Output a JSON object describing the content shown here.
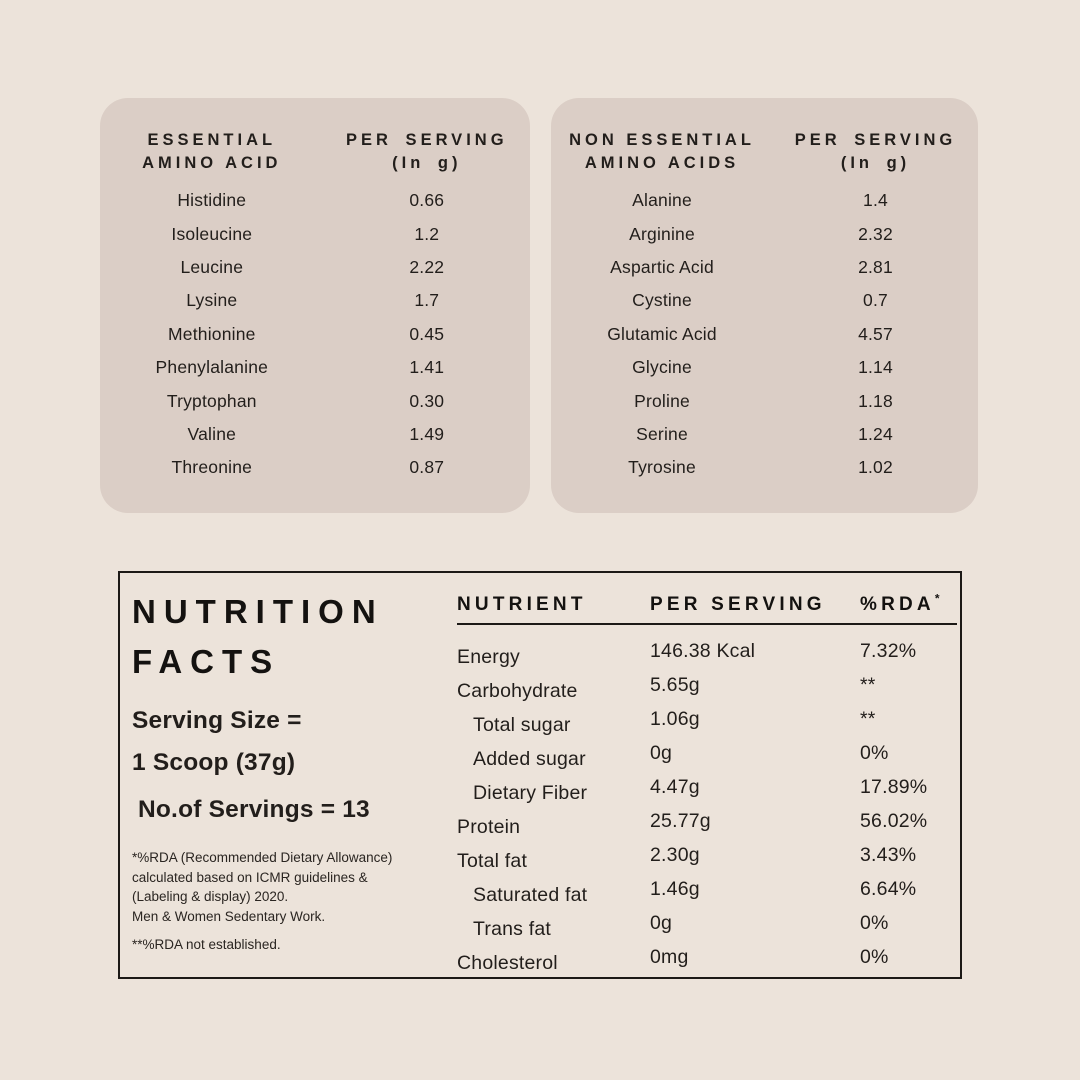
{
  "page": {
    "background_color": "#ece3da",
    "card_color": "#dbcec6",
    "text_color": "#221e1b",
    "border_color": "#1c1916"
  },
  "essential": {
    "header_col1": "ESSENTIAL\nAMINO ACID",
    "header_col2": "PER SERVING\n(In g)",
    "rows": [
      {
        "name": "Histidine",
        "value": "0.66"
      },
      {
        "name": "Isoleucine",
        "value": "1.2"
      },
      {
        "name": "Leucine",
        "value": "2.22"
      },
      {
        "name": "Lysine",
        "value": "1.7"
      },
      {
        "name": "Methionine",
        "value": "0.45"
      },
      {
        "name": "Phenylalanine",
        "value": "1.41"
      },
      {
        "name": "Tryptophan",
        "value": "0.30"
      },
      {
        "name": "Valine",
        "value": "1.49"
      },
      {
        "name": "Threonine",
        "value": "0.87"
      }
    ]
  },
  "non_essential": {
    "header_col1": "NON ESSENTIAL\nAMINO ACIDS",
    "header_col2": "PER SERVING\n(In g)",
    "rows": [
      {
        "name": "Alanine",
        "value": "1.4"
      },
      {
        "name": "Arginine",
        "value": "2.32"
      },
      {
        "name": "Aspartic Acid",
        "value": "2.81"
      },
      {
        "name": "Cystine",
        "value": "0.7"
      },
      {
        "name": "Glutamic Acid",
        "value": "4.57"
      },
      {
        "name": "Glycine",
        "value": "1.14"
      },
      {
        "name": "Proline",
        "value": "1.18"
      },
      {
        "name": "Serine",
        "value": "1.24"
      },
      {
        "name": "Tyrosine",
        "value": "1.02"
      }
    ]
  },
  "nutrition": {
    "title_line1": "NUTRITION",
    "title_line2": "FACTS",
    "serving_line1": "Serving Size =",
    "serving_line2": "1 Scoop (37g)",
    "servings_count": "No.of Servings = 13",
    "footnote1_lines": [
      "*%RDA (Recommended Dietary Allowance)",
      "calculated based on ICMR guidelines &",
      "(Labeling & display) 2020.",
      "Men & Women Sedentary Work."
    ],
    "footnote2": "**%RDA not established.",
    "table": {
      "headers": {
        "nutrient": "NUTRIENT",
        "per_serving": "PER SERVING",
        "rda": "%RDA",
        "rda_asterisk": "*"
      },
      "rows": [
        {
          "nutrient": "Energy",
          "per_serving": "146.38 Kcal",
          "rda": "7.32%",
          "indent": false
        },
        {
          "nutrient": "Carbohydrate",
          "per_serving": "5.65g",
          "rda": "**",
          "indent": false
        },
        {
          "nutrient": "Total sugar",
          "per_serving": "1.06g",
          "rda": "**",
          "indent": true
        },
        {
          "nutrient": "Added sugar",
          "per_serving": "0g",
          "rda": "0%",
          "indent": true
        },
        {
          "nutrient": "Dietary Fiber",
          "per_serving": "4.47g",
          "rda": "17.89%",
          "indent": true
        },
        {
          "nutrient": "Protein",
          "per_serving": "25.77g",
          "rda": "56.02%",
          "indent": false
        },
        {
          "nutrient": "Total fat",
          "per_serving": "2.30g",
          "rda": "3.43%",
          "indent": false
        },
        {
          "nutrient": "Saturated fat",
          "per_serving": "1.46g",
          "rda": "6.64%",
          "indent": true
        },
        {
          "nutrient": "Trans fat",
          "per_serving": "0g",
          "rda": "0%",
          "indent": true
        },
        {
          "nutrient": "Cholesterol",
          "per_serving": "0mg",
          "rda": "0%",
          "indent": false
        }
      ]
    }
  }
}
